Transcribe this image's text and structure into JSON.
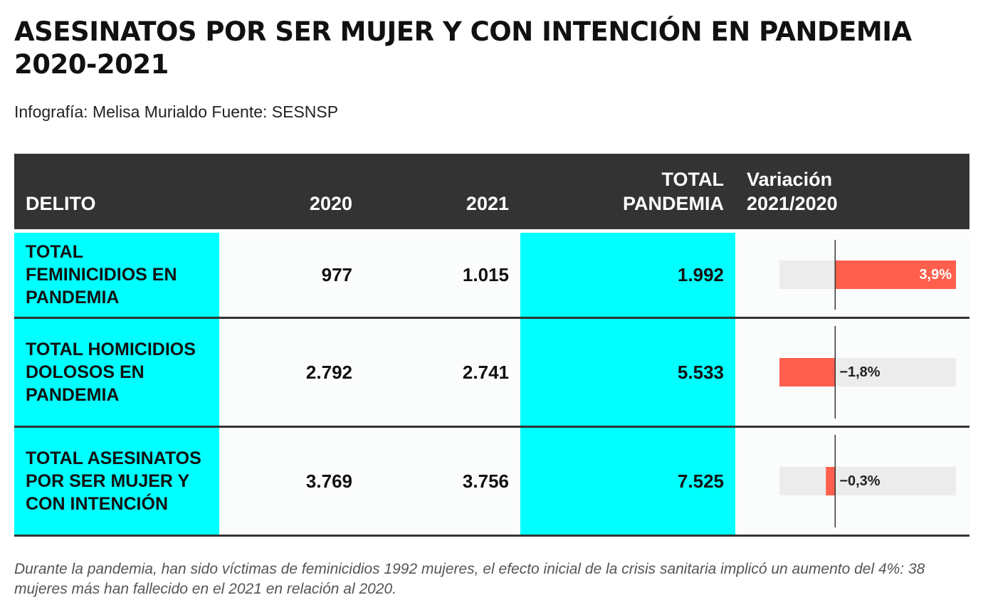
{
  "title": "ASESINATOS POR SER MUJER Y CON INTENCIÓN EN PANDEMIA 2020-2021",
  "subtitle": "Infografía: Melisa Murialdo Fuente: SESNSP",
  "note": "Durante la pandemia, han sido víctimas de feminicidios 1992 mujeres, el efecto inicial de la crisis sanitaria implicó un aumento del 4%: 38 mujeres más han fallecido en el 2021 en relación al 2020.",
  "colors": {
    "header_bg": "#333333",
    "highlight": "#00ffff",
    "bar": "#ff5f4c",
    "bar_track": "#ececec"
  },
  "chart_data": {
    "type": "table",
    "columns": [
      "DELITO",
      "2020",
      "2021",
      "TOTAL PANDEMIA",
      "Variación 2021/2020"
    ],
    "rows": [
      {
        "delito": "TOTAL FEMINICIDIOS EN PANDEMIA",
        "y2020": "977",
        "y2021": "1.015",
        "total": "1.992",
        "variacion": 3.9,
        "variacion_label": "3,9%"
      },
      {
        "delito": "TOTAL HOMICIDIOS DOLOSOS EN PANDEMIA",
        "y2020": "2.792",
        "y2021": "2.741",
        "total": "5.533",
        "variacion": -1.8,
        "variacion_label": "−1,8%"
      },
      {
        "delito": "TOTAL ASESINATOS POR SER MUJER Y CON INTENCIÓN",
        "y2020": "3.769",
        "y2021": "3.756",
        "total": "7.525",
        "variacion": -0.3,
        "variacion_label": "−0,3%"
      }
    ],
    "variation_axis": {
      "min": -1.8,
      "max": 3.9
    }
  }
}
